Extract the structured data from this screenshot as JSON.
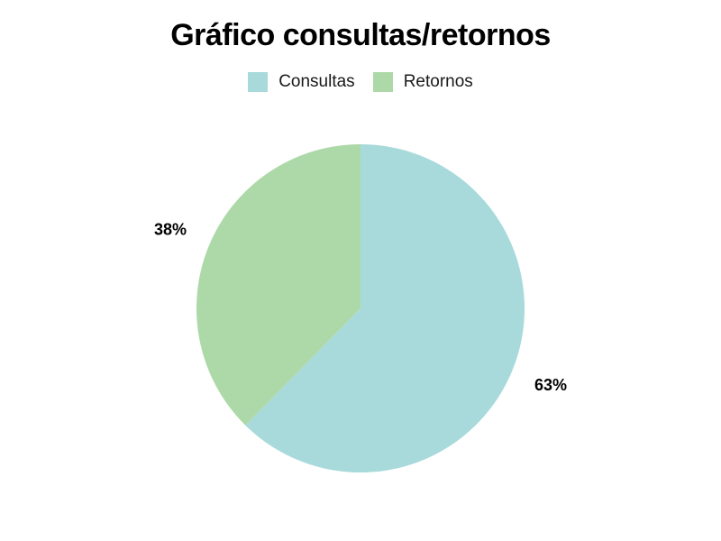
{
  "chart_data": {
    "type": "pie",
    "title": "Gráfico consultas/retornos",
    "legend_position": "top-center",
    "categories": [
      "Consultas",
      "Retornos"
    ],
    "values": [
      63,
      38
    ],
    "labels": [
      "63%",
      "38%"
    ],
    "colors": [
      "#a8dadb",
      "#add9a8"
    ]
  }
}
